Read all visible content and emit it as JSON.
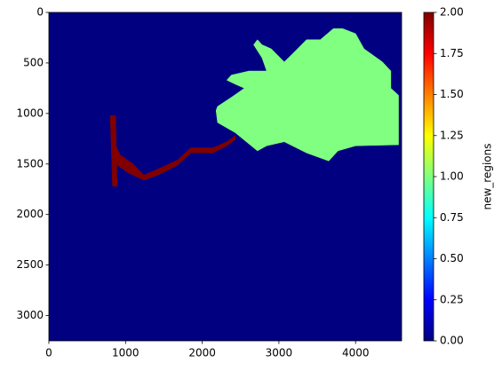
{
  "chart_data": {
    "type": "image",
    "colormap": "jet",
    "background_value": 0,
    "clim": [
      0,
      2
    ],
    "xlim": [
      0,
      4600
    ],
    "ylim": [
      3250,
      0
    ],
    "xticks": [
      0,
      1000,
      2000,
      3000,
      4000
    ],
    "yticks": [
      0,
      500,
      1000,
      1500,
      2000,
      2500,
      3000
    ],
    "colorbar_label": "new_regions",
    "colorbar_ticks": [
      {
        "value": 0,
        "label": "0.00"
      },
      {
        "value": 0.25,
        "label": "0.25"
      },
      {
        "value": 0.5,
        "label": "0.50"
      },
      {
        "value": 0.75,
        "label": "0.75"
      },
      {
        "value": 1,
        "label": "1.00"
      },
      {
        "value": 1.25,
        "label": "1.25"
      },
      {
        "value": 1.5,
        "label": "1.50"
      },
      {
        "value": 1.75,
        "label": "1.75"
      },
      {
        "value": 2,
        "label": "2.00"
      }
    ],
    "regions": [
      {
        "value": 1,
        "polygon": [
          [
            2180,
            970
          ],
          [
            2200,
            1090
          ],
          [
            2430,
            1190
          ],
          [
            2720,
            1370
          ],
          [
            2840,
            1320
          ],
          [
            3070,
            1280
          ],
          [
            3360,
            1390
          ],
          [
            3650,
            1470
          ],
          [
            3770,
            1370
          ],
          [
            4000,
            1320
          ],
          [
            4560,
            1310
          ],
          [
            4560,
            820
          ],
          [
            4460,
            750
          ],
          [
            4460,
            580
          ],
          [
            4350,
            490
          ],
          [
            4110,
            360
          ],
          [
            4000,
            210
          ],
          [
            3830,
            160
          ],
          [
            3710,
            160
          ],
          [
            3540,
            270
          ],
          [
            3360,
            270
          ],
          [
            3190,
            400
          ],
          [
            3070,
            490
          ],
          [
            2900,
            360
          ],
          [
            2780,
            320
          ],
          [
            2720,
            270
          ],
          [
            2670,
            320
          ],
          [
            2780,
            450
          ],
          [
            2840,
            580
          ],
          [
            2610,
            580
          ],
          [
            2380,
            620
          ],
          [
            2320,
            670
          ],
          [
            2430,
            710
          ],
          [
            2550,
            750
          ],
          [
            2380,
            840
          ],
          [
            2200,
            930
          ]
        ]
      },
      {
        "value": 2,
        "polygon": [
          [
            850,
            1280
          ],
          [
            930,
            1410
          ],
          [
            1100,
            1500
          ],
          [
            1240,
            1610
          ],
          [
            1450,
            1540
          ],
          [
            1680,
            1460
          ],
          [
            1850,
            1340
          ],
          [
            2140,
            1340
          ],
          [
            2320,
            1280
          ],
          [
            2430,
            1220
          ],
          [
            2430,
            1260
          ],
          [
            2320,
            1320
          ],
          [
            2140,
            1390
          ],
          [
            1850,
            1390
          ],
          [
            1680,
            1510
          ],
          [
            1450,
            1600
          ],
          [
            1240,
            1660
          ],
          [
            1040,
            1590
          ],
          [
            870,
            1500
          ],
          [
            810,
            1320
          ]
        ]
      },
      {
        "value": 2,
        "polygon": [
          [
            800,
            1020
          ],
          [
            870,
            1020
          ],
          [
            890,
            1720
          ],
          [
            830,
            1720
          ]
        ]
      }
    ]
  }
}
